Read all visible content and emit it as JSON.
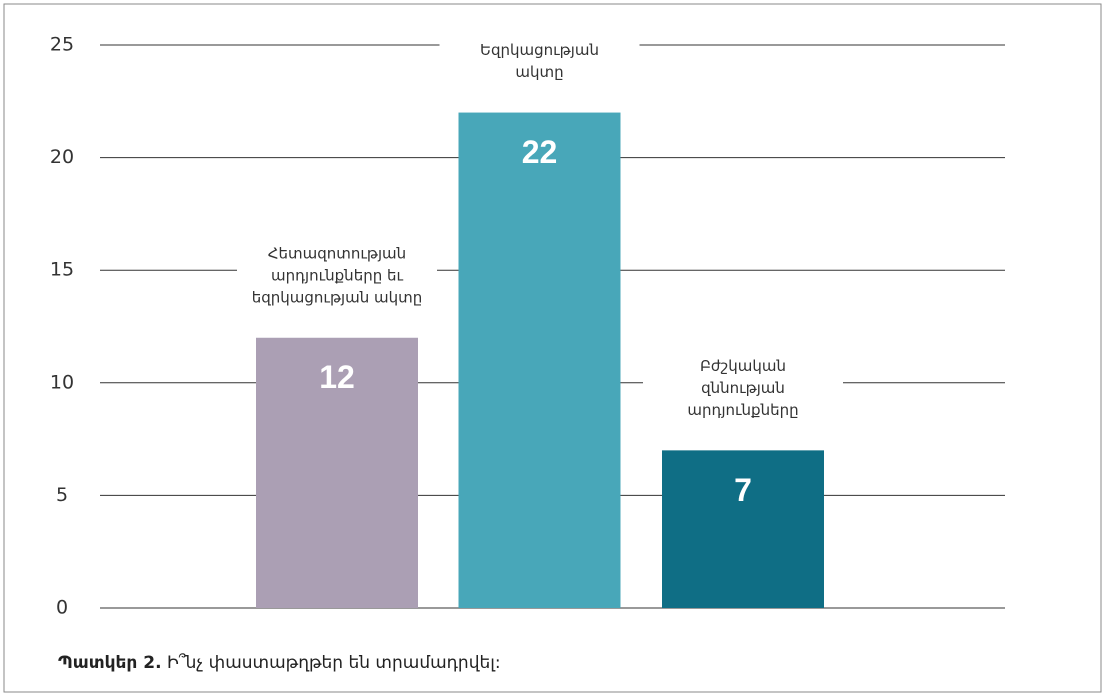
{
  "chart_data": {
    "type": "bar",
    "categories": [
      [
        "Հետազոտության",
        "արդյունքները եւ",
        "եզրկացության ակտը"
      ],
      [
        "Եզրկացության",
        "ակտը"
      ],
      [
        "Բժշկական",
        "զննության",
        "արդյունքները"
      ]
    ],
    "values": [
      12,
      22,
      7
    ],
    "colors": [
      "#ab9fb4",
      "#48a7b9",
      "#0f6e85"
    ],
    "ylim": [
      0,
      25
    ],
    "yticks": [
      0,
      5,
      10,
      15,
      20,
      25
    ],
    "grid": true,
    "caption": {
      "label": "Պատկեր 2.",
      "text": "Ի՞նչ փաստաթղթեր են տրամադրվել:"
    }
  }
}
